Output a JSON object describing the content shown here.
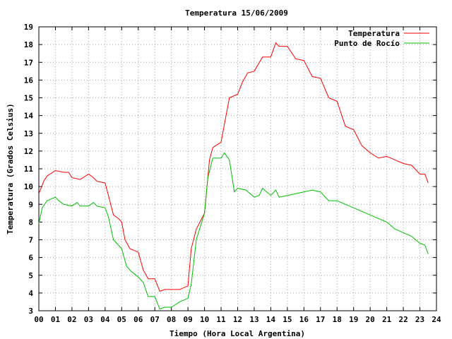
{
  "chart_data": {
    "type": "line",
    "title": "Temperatura 15/06/2009",
    "xlabel": "Tiempo (Hora Local Argentina)",
    "ylabel": "Temperatura (Grados Celsius)",
    "xlim": [
      0,
      24
    ],
    "ylim": [
      3,
      19
    ],
    "grid": true,
    "legend_position": "top-right",
    "x_ticks": [
      "00",
      "01",
      "02",
      "03",
      "04",
      "05",
      "06",
      "07",
      "08",
      "09",
      "10",
      "11",
      "12",
      "13",
      "14",
      "15",
      "16",
      "17",
      "18",
      "19",
      "20",
      "21",
      "22",
      "23",
      "24"
    ],
    "y_ticks": [
      3,
      4,
      5,
      6,
      7,
      8,
      9,
      10,
      11,
      12,
      13,
      14,
      15,
      16,
      17,
      18,
      19
    ],
    "series": [
      {
        "name": "Temperatura",
        "color": "#ff0000",
        "x": [
          0,
          0.3,
          0.5,
          1.0,
          1.5,
          1.8,
          2.0,
          2.5,
          3.0,
          3.3,
          3.5,
          4.0,
          4.2,
          4.5,
          4.8,
          5.0,
          5.2,
          5.5,
          6.0,
          6.3,
          6.6,
          7.0,
          7.3,
          7.6,
          8.0,
          8.5,
          9.0,
          9.2,
          9.5,
          10.0,
          10.3,
          10.5,
          11.0,
          11.2,
          11.5,
          12.0,
          12.3,
          12.6,
          13.0,
          13.5,
          14.0,
          14.3,
          14.5,
          15.0,
          15.5,
          16.0,
          16.5,
          17.0,
          17.5,
          18.0,
          18.5,
          19.0,
          19.5,
          20.0,
          20.5,
          21.0,
          21.5,
          22.0,
          22.5,
          23.0,
          23.3,
          23.5
        ],
        "values": [
          9.6,
          10.3,
          10.6,
          10.9,
          10.8,
          10.8,
          10.5,
          10.4,
          10.7,
          10.5,
          10.3,
          10.2,
          9.5,
          8.4,
          8.2,
          8.0,
          7.0,
          6.5,
          6.3,
          5.3,
          4.8,
          4.8,
          4.1,
          4.2,
          4.2,
          4.2,
          4.4,
          6.5,
          7.6,
          8.5,
          11.5,
          12.2,
          12.5,
          13.5,
          15.0,
          15.2,
          15.9,
          16.4,
          16.5,
          17.3,
          17.3,
          18.1,
          17.9,
          17.9,
          17.2,
          17.1,
          16.2,
          16.1,
          15.0,
          14.8,
          13.4,
          13.2,
          12.3,
          11.9,
          11.6,
          11.7,
          11.5,
          11.3,
          11.2,
          10.7,
          10.7,
          10.2
        ]
      },
      {
        "name": "Punto de Rocío",
        "color": "#00c000",
        "x": [
          0,
          0.2,
          0.5,
          1.0,
          1.2,
          1.5,
          2.0,
          2.3,
          2.5,
          3.0,
          3.3,
          3.5,
          4.0,
          4.2,
          4.5,
          4.8,
          5.0,
          5.3,
          5.6,
          6.0,
          6.3,
          6.6,
          7.0,
          7.3,
          7.6,
          8.0,
          8.5,
          9.0,
          9.2,
          9.5,
          10.0,
          10.2,
          10.5,
          11.0,
          11.2,
          11.5,
          11.8,
          12.0,
          12.5,
          13.0,
          13.3,
          13.5,
          14.0,
          14.3,
          14.5,
          15.0,
          15.5,
          16.0,
          16.5,
          17.0,
          17.5,
          18.0,
          18.5,
          19.0,
          19.5,
          20.0,
          20.5,
          21.0,
          21.5,
          22.0,
          22.5,
          23.0,
          23.3,
          23.5
        ],
        "values": [
          7.9,
          8.8,
          9.2,
          9.4,
          9.2,
          9.0,
          8.9,
          9.1,
          8.9,
          8.9,
          9.1,
          8.9,
          8.8,
          8.3,
          7.0,
          6.7,
          6.5,
          5.5,
          5.2,
          4.9,
          4.6,
          3.8,
          3.8,
          3.1,
          3.2,
          3.2,
          3.5,
          3.7,
          4.5,
          7.0,
          8.5,
          10.5,
          11.6,
          11.6,
          11.9,
          11.5,
          9.7,
          9.9,
          9.8,
          9.4,
          9.5,
          9.9,
          9.5,
          9.8,
          9.4,
          9.5,
          9.6,
          9.7,
          9.8,
          9.7,
          9.2,
          9.2,
          9.0,
          8.8,
          8.6,
          8.4,
          8.2,
          8.0,
          7.6,
          7.4,
          7.2,
          6.8,
          6.7,
          6.2
        ]
      }
    ]
  }
}
